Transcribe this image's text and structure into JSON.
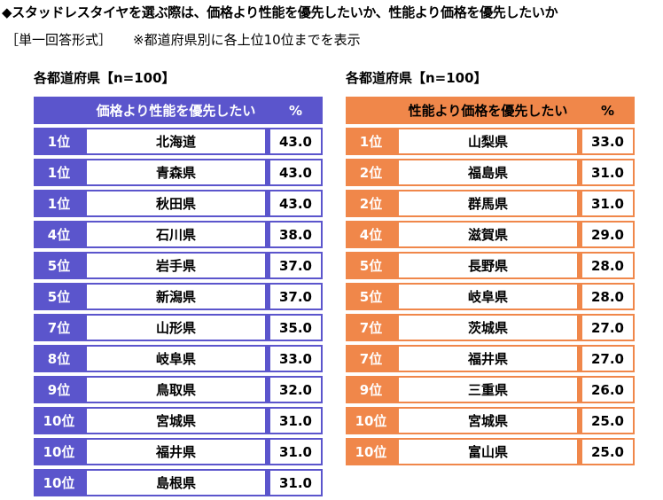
{
  "title": "◆スタッドレスタイヤを選ぶ際は、価格より性能を優先したいか、性能より価格を優先したいか",
  "subtitle": "［単一回答形式］",
  "note": "※都道府県別に各上位10位までを表示",
  "left": {
    "section_label": "各都道府県【n=100】",
    "header_name": "価格より性能を優先したい",
    "header_pct": "%",
    "rows": [
      {
        "rank": "1位",
        "name": "北海道",
        "pct": "43.0"
      },
      {
        "rank": "1位",
        "name": "青森県",
        "pct": "43.0"
      },
      {
        "rank": "1位",
        "name": "秋田県",
        "pct": "43.0"
      },
      {
        "rank": "4位",
        "name": "石川県",
        "pct": "38.0"
      },
      {
        "rank": "5位",
        "name": "岩手県",
        "pct": "37.0"
      },
      {
        "rank": "5位",
        "name": "新潟県",
        "pct": "37.0"
      },
      {
        "rank": "7位",
        "name": "山形県",
        "pct": "35.0"
      },
      {
        "rank": "8位",
        "name": "岐阜県",
        "pct": "33.0"
      },
      {
        "rank": "9位",
        "name": "鳥取県",
        "pct": "32.0"
      },
      {
        "rank": "10位",
        "name": "宮城県",
        "pct": "31.0"
      },
      {
        "rank": "10位",
        "name": "福井県",
        "pct": "31.0"
      },
      {
        "rank": "10位",
        "name": "島根県",
        "pct": "31.0"
      }
    ]
  },
  "right": {
    "section_label": "各都道府県【n=100】",
    "header_name": "性能より価格を優先したい",
    "header_pct": "%",
    "rows": [
      {
        "rank": "1位",
        "name": "山梨県",
        "pct": "33.0"
      },
      {
        "rank": "2位",
        "name": "福島県",
        "pct": "31.0"
      },
      {
        "rank": "2位",
        "name": "群馬県",
        "pct": "31.0"
      },
      {
        "rank": "4位",
        "name": "滋賀県",
        "pct": "29.0"
      },
      {
        "rank": "5位",
        "name": "長野県",
        "pct": "28.0"
      },
      {
        "rank": "5位",
        "name": "岐阜県",
        "pct": "28.0"
      },
      {
        "rank": "7位",
        "name": "茨城県",
        "pct": "27.0"
      },
      {
        "rank": "7位",
        "name": "福井県",
        "pct": "27.0"
      },
      {
        "rank": "9位",
        "name": "三重県",
        "pct": "26.0"
      },
      {
        "rank": "10位",
        "name": "宮城県",
        "pct": "25.0"
      },
      {
        "rank": "10位",
        "name": "富山県",
        "pct": "25.0"
      }
    ]
  },
  "colors": {
    "left_accent": "#5b55cc",
    "right_accent": "#f0874a"
  }
}
